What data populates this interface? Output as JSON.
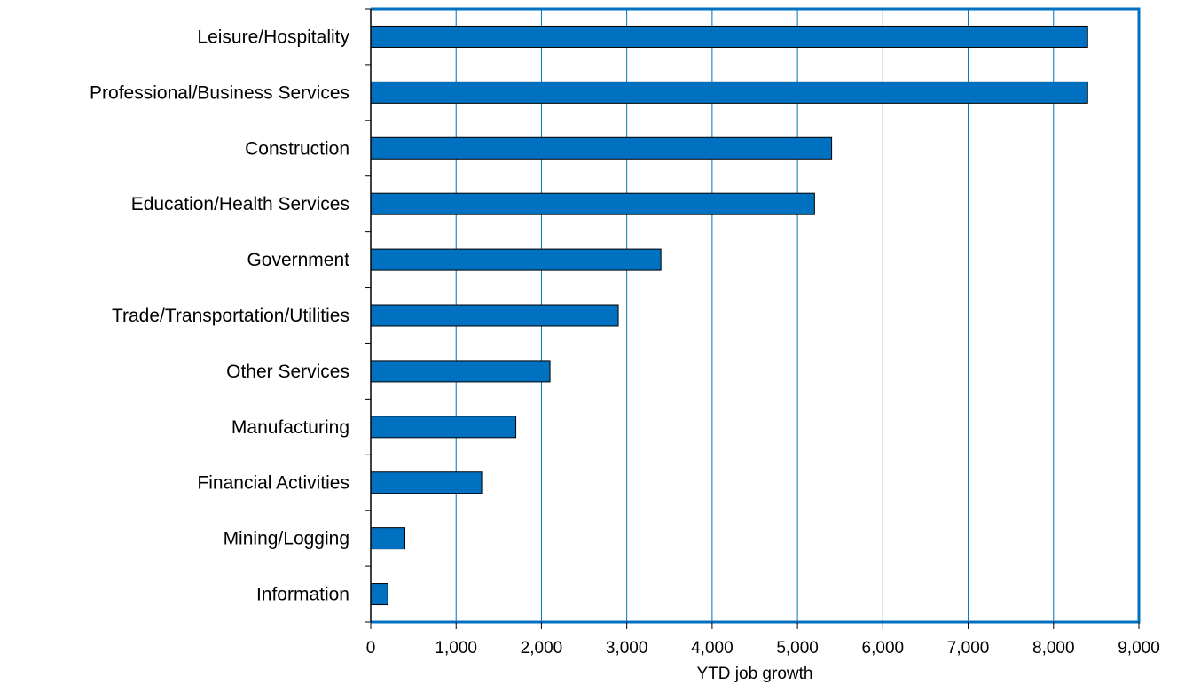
{
  "chart_data": {
    "type": "bar",
    "orientation": "horizontal",
    "title": "",
    "xlabel": "YTD job growth",
    "ylabel": "",
    "categories": [
      "Leisure/Hospitality",
      "Professional/Business Services",
      "Construction",
      "Education/Health Services",
      "Government",
      "Trade/Transportation/Utilities",
      "Other Services",
      "Manufacturing",
      "Financial Activities",
      "Mining/Logging",
      "Information"
    ],
    "values": [
      8400,
      8400,
      5400,
      5200,
      3400,
      2900,
      2100,
      1700,
      1300,
      400,
      200
    ],
    "xlim": [
      0,
      9000
    ],
    "xticks": [
      0,
      1000,
      2000,
      3000,
      4000,
      5000,
      6000,
      7000,
      8000,
      9000
    ],
    "xtick_labels": [
      "0",
      "1,000",
      "2,000",
      "3,000",
      "4,000",
      "5,000",
      "6,000",
      "7,000",
      "8,000",
      "9,000"
    ],
    "grid": "vertical",
    "legend": "none",
    "colors": {
      "bar_fill": "#0070C0",
      "bar_stroke": "#000000",
      "gridline": "#0070C0",
      "frame": "#0070C0",
      "axis": "#000000"
    }
  }
}
